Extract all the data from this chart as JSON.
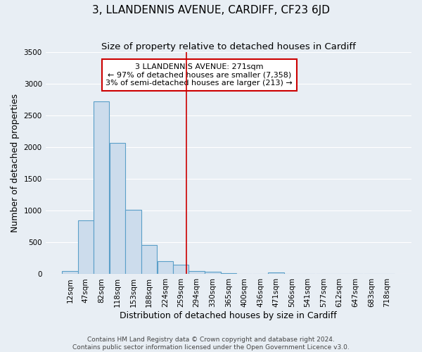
{
  "title": "3, LLANDENNIS AVENUE, CARDIFF, CF23 6JD",
  "subtitle": "Size of property relative to detached houses in Cardiff",
  "xlabel": "Distribution of detached houses by size in Cardiff",
  "ylabel": "Number of detached properties",
  "bar_labels": [
    "12sqm",
    "47sqm",
    "82sqm",
    "118sqm",
    "153sqm",
    "188sqm",
    "224sqm",
    "259sqm",
    "294sqm",
    "330sqm",
    "365sqm",
    "400sqm",
    "436sqm",
    "471sqm",
    "506sqm",
    "541sqm",
    "577sqm",
    "612sqm",
    "647sqm",
    "683sqm",
    "718sqm"
  ],
  "bar_values": [
    55,
    850,
    2730,
    2070,
    1020,
    460,
    210,
    150,
    55,
    35,
    20,
    10,
    5,
    30,
    0,
    0,
    0,
    0,
    0,
    0,
    0
  ],
  "bar_color": "#ccdcec",
  "bar_edge_color": "#5a9fc8",
  "ylim": [
    0,
    3500
  ],
  "yticks": [
    0,
    500,
    1000,
    1500,
    2000,
    2500,
    3000,
    3500
  ],
  "vline_x": 271,
  "vline_color": "#cc0000",
  "annotation_text": "3 LLANDENNIS AVENUE: 271sqm\n← 97% of detached houses are smaller (7,358)\n3% of semi-detached houses are larger (213) →",
  "annotation_box_color": "white",
  "annotation_box_edge_color": "#cc0000",
  "footer_text": "Contains HM Land Registry data © Crown copyright and database right 2024.\nContains public sector information licensed under the Open Government Licence v3.0.",
  "bg_color": "#e8eef4",
  "title_fontsize": 11,
  "subtitle_fontsize": 9.5,
  "ylabel_fontsize": 9,
  "xlabel_fontsize": 9,
  "tick_fontsize": 7.5,
  "bin_width": 35
}
